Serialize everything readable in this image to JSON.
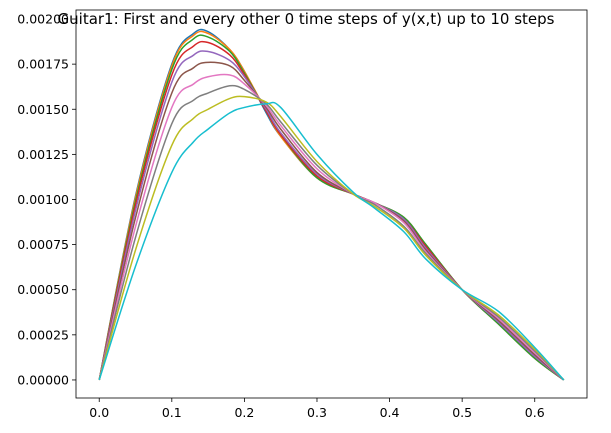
{
  "chart_data": {
    "type": "line",
    "title": "Guitar1: First and every other 0 time steps of y(x,t) up to 10 steps",
    "xlabel": "",
    "ylabel": "",
    "xlim": [
      -0.032,
      0.672
    ],
    "ylim": [
      -0.0001,
      0.00205
    ],
    "grid": false,
    "x_ticks": [
      0.0,
      0.1,
      0.2,
      0.3,
      0.4,
      0.5,
      0.6
    ],
    "x_tick_labels": [
      "0.0",
      "0.1",
      "0.2",
      "0.3",
      "0.4",
      "0.5",
      "0.6"
    ],
    "y_ticks": [
      0,
      0.00025,
      0.0005,
      0.00075,
      0.001,
      0.00125,
      0.0015,
      0.00175,
      0.002
    ],
    "y_tick_labels": [
      "0.00000",
      "0.00025",
      "0.00050",
      "0.00075",
      "0.00100",
      "0.00125",
      "0.00150",
      "0.00175",
      "0.00200"
    ],
    "x": [
      0.0,
      0.05,
      0.1,
      0.13,
      0.15,
      0.18,
      0.2,
      0.23,
      0.25,
      0.3,
      0.35,
      0.38,
      0.42,
      0.45,
      0.5,
      0.55,
      0.6,
      0.64
    ],
    "series": [
      {
        "color": "#1f77b4",
        "values": [
          0,
          0.00102,
          0.00175,
          0.00192,
          0.00193,
          0.00183,
          0.00171,
          0.00148,
          0.00135,
          0.00112,
          0.00103,
          0.00098,
          0.0009,
          0.00075,
          0.0005,
          0.00031,
          0.00012,
          0
        ]
      },
      {
        "color": "#ff7f0e",
        "values": [
          0,
          0.00101,
          0.00174,
          0.00191,
          0.00192,
          0.00183,
          0.00171,
          0.00149,
          0.00135,
          0.00112,
          0.00103,
          0.00098,
          0.0009,
          0.00075,
          0.0005,
          0.00031,
          0.00012,
          0
        ]
      },
      {
        "color": "#2ca02c",
        "values": [
          0,
          0.00099,
          0.00172,
          0.00189,
          0.0019,
          0.00182,
          0.0017,
          0.00149,
          0.00136,
          0.00112,
          0.00103,
          0.00098,
          0.0009,
          0.00075,
          0.0005,
          0.00031,
          0.00012,
          0
        ]
      },
      {
        "color": "#d62728",
        "values": [
          0,
          0.00097,
          0.00169,
          0.00185,
          0.00187,
          0.0018,
          0.00169,
          0.00149,
          0.00136,
          0.00113,
          0.00103,
          0.00098,
          0.00089,
          0.00074,
          0.0005,
          0.00032,
          0.00013,
          0
        ]
      },
      {
        "color": "#9467bd",
        "values": [
          0,
          0.00094,
          0.00165,
          0.0018,
          0.00182,
          0.00177,
          0.00168,
          0.0015,
          0.00137,
          0.00114,
          0.00103,
          0.00098,
          0.00089,
          0.00073,
          0.0005,
          0.00032,
          0.00013,
          0
        ]
      },
      {
        "color": "#8c564b",
        "values": [
          0,
          0.0009,
          0.00159,
          0.00173,
          0.00176,
          0.00174,
          0.00166,
          0.00151,
          0.00139,
          0.00115,
          0.00103,
          0.00098,
          0.00088,
          0.00072,
          0.0005,
          0.00033,
          0.00014,
          0
        ]
      },
      {
        "color": "#e377c2",
        "values": [
          0,
          0.00085,
          0.00151,
          0.00164,
          0.00168,
          0.00169,
          0.00164,
          0.00152,
          0.00141,
          0.00117,
          0.00103,
          0.00098,
          0.00087,
          0.00071,
          0.0005,
          0.00034,
          0.00015,
          0
        ]
      },
      {
        "color": "#7f7f7f",
        "values": [
          0,
          0.00079,
          0.00142,
          0.00155,
          0.00159,
          0.00163,
          0.00161,
          0.00153,
          0.00143,
          0.00119,
          0.00103,
          0.00097,
          0.00085,
          0.0007,
          0.0005,
          0.00035,
          0.00016,
          0
        ]
      },
      {
        "color": "#bcbd22",
        "values": [
          0,
          0.00072,
          0.0013,
          0.00145,
          0.0015,
          0.00156,
          0.00157,
          0.00154,
          0.00146,
          0.00121,
          0.00103,
          0.00096,
          0.00084,
          0.00069,
          0.0005,
          0.00036,
          0.00017,
          0
        ]
      },
      {
        "color": "#17becf",
        "values": [
          0,
          0.00063,
          0.00115,
          0.00132,
          0.00139,
          0.00148,
          0.00151,
          0.00153,
          0.00151,
          0.00125,
          0.00104,
          0.00095,
          0.00082,
          0.00067,
          0.0005,
          0.00038,
          0.00018,
          0
        ]
      }
    ]
  }
}
